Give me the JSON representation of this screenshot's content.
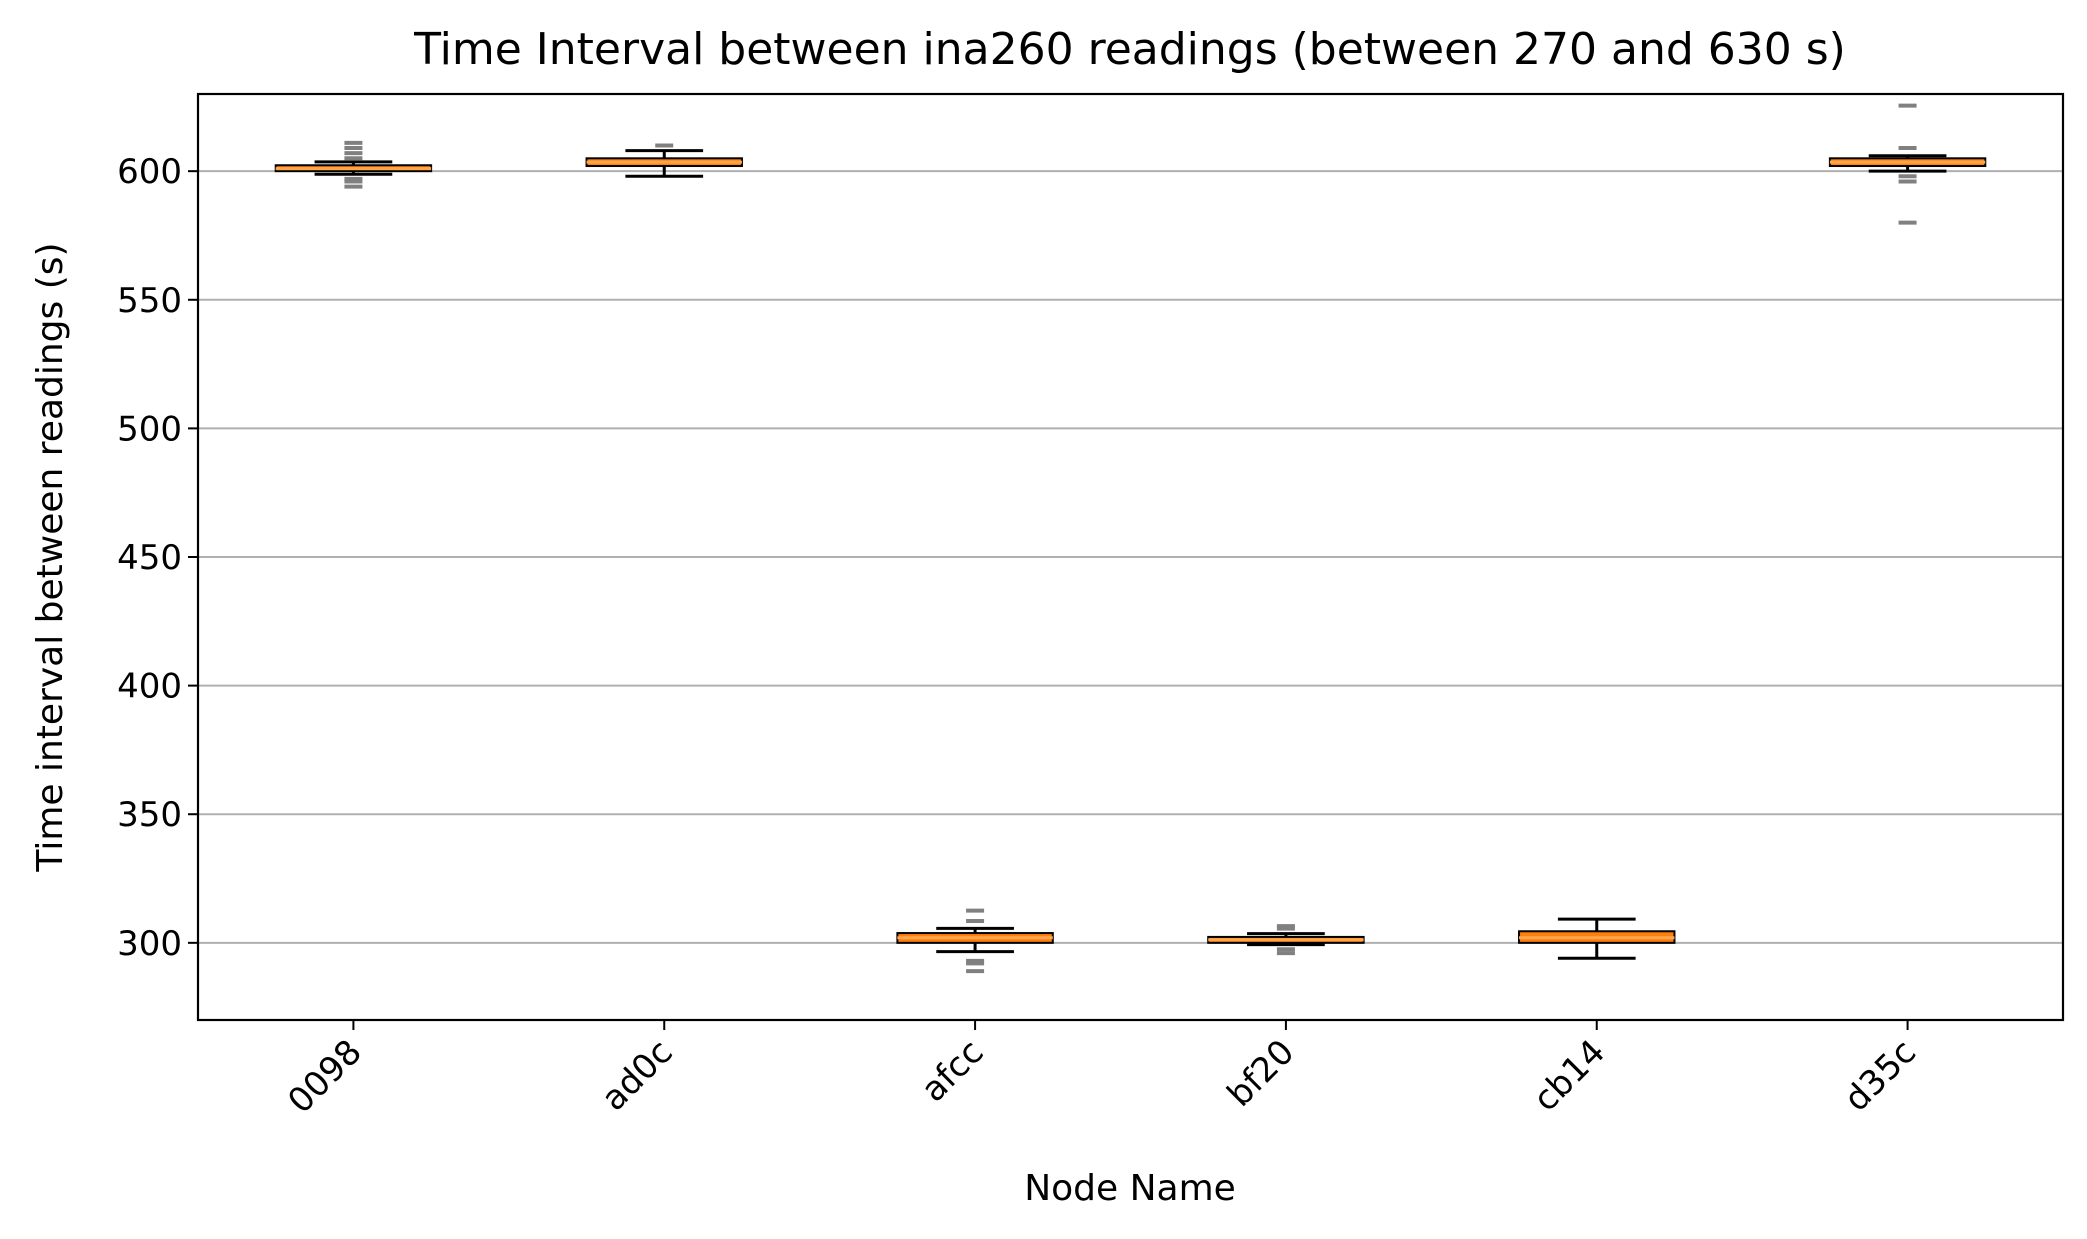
{
  "chart_data": {
    "type": "box",
    "title": "Time Interval between ina260 readings (between 270 and 630 s)",
    "xlabel": "Node Name",
    "ylabel": "Time interval between readings (s)",
    "ylim": [
      270,
      630
    ],
    "yticks": [
      300,
      350,
      400,
      450,
      500,
      550,
      600
    ],
    "grid": "y-major",
    "x_tick_rotation_deg": 45,
    "colors": {
      "box_face": "#ff7f0e",
      "box_edge": "#000000",
      "median": "#ffa64d",
      "whisker": "#000000",
      "flier": "#808080",
      "grid": "#b0b0b0"
    },
    "categories": [
      "0098",
      "ad0c",
      "afcc",
      "bf20",
      "cb14",
      "d35c"
    ],
    "boxes": [
      {
        "name": "0098",
        "whislo": 598.8,
        "q1": 600.0,
        "median": 601.0,
        "q3": 602.3,
        "whishi": 603.6,
        "fliers": [
          594.0,
          596.0,
          597.0,
          605.0,
          607.0,
          609.0,
          611.0
        ]
      },
      {
        "name": "ad0c",
        "whislo": 598.0,
        "q1": 602.0,
        "median": 603.5,
        "q3": 605.0,
        "whishi": 608.0,
        "fliers": [
          610.0
        ]
      },
      {
        "name": "afcc",
        "whislo": 296.6,
        "q1": 300.0,
        "median": 302.0,
        "q3": 303.8,
        "whishi": 305.6,
        "fliers": [
          289.0,
          292.0,
          293.0,
          308.5,
          312.5
        ]
      },
      {
        "name": "bf20",
        "whislo": 299.3,
        "q1": 300.0,
        "median": 301.2,
        "q3": 302.3,
        "whishi": 303.6,
        "fliers": [
          296.0,
          297.5,
          305.5,
          306.5
        ]
      },
      {
        "name": "cb14",
        "whislo": 294.0,
        "q1": 300.0,
        "median": 302.0,
        "q3": 304.5,
        "whishi": 309.2,
        "fliers": []
      },
      {
        "name": "d35c",
        "whislo": 600.0,
        "q1": 602.0,
        "median": 603.5,
        "q3": 605.0,
        "whishi": 606.0,
        "fliers": [
          580.0,
          596.0,
          598.0,
          609.0,
          625.5
        ]
      }
    ]
  }
}
